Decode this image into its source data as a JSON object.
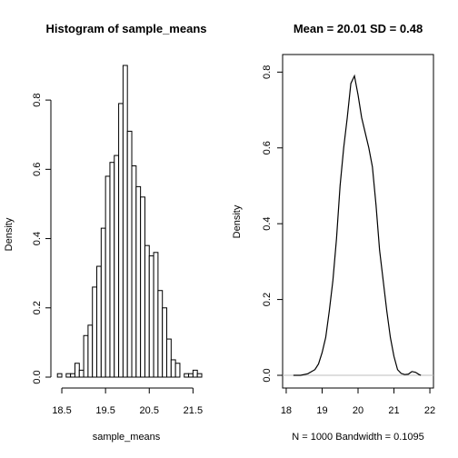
{
  "chart_data": [
    {
      "type": "bar",
      "title": "Histogram of sample_means",
      "xlabel": "sample_means",
      "ylabel": "Density",
      "xlim": [
        18.25,
        21.7
      ],
      "ylim": [
        0,
        0.9
      ],
      "xticks": [
        "18.5",
        "19.5",
        "20.5",
        "21.5"
      ],
      "xtick_values": [
        18.5,
        19.5,
        20.5,
        21.5
      ],
      "yticks": [
        "0.0",
        "0.2",
        "0.4",
        "0.6",
        "0.8"
      ],
      "ytick_values": [
        0.0,
        0.2,
        0.4,
        0.6,
        0.8
      ],
      "bin_width": 0.1,
      "bins_start": [
        18.4,
        18.5,
        18.6,
        18.7,
        18.8,
        18.9,
        19.0,
        19.1,
        19.2,
        19.3,
        19.4,
        19.5,
        19.6,
        19.7,
        19.8,
        19.9,
        20.0,
        20.1,
        20.2,
        20.3,
        20.4,
        20.5,
        20.6,
        20.7,
        20.8,
        20.9,
        21.0,
        21.1,
        21.2,
        21.3,
        21.4,
        21.5,
        21.6
      ],
      "values": [
        0.01,
        0.0,
        0.01,
        0.01,
        0.04,
        0.02,
        0.12,
        0.15,
        0.26,
        0.32,
        0.43,
        0.58,
        0.62,
        0.64,
        0.79,
        0.9,
        0.71,
        0.61,
        0.55,
        0.52,
        0.38,
        0.35,
        0.36,
        0.25,
        0.2,
        0.11,
        0.05,
        0.04,
        0.0,
        0.01,
        0.01,
        0.02,
        0.01
      ]
    },
    {
      "type": "line",
      "title": "Mean =  20.01 SD =  0.48",
      "xlabel": "N = 1000   Bandwidth = 0.1095",
      "ylabel": "Density",
      "xlim": [
        17.9,
        22.1
      ],
      "ylim": [
        0,
        0.82
      ],
      "xticks": [
        "18",
        "19",
        "20",
        "21",
        "22"
      ],
      "xtick_values": [
        18,
        19,
        20,
        21,
        22
      ],
      "yticks": [
        "0.0",
        "0.2",
        "0.4",
        "0.6",
        "0.8"
      ],
      "ytick_values": [
        0.0,
        0.2,
        0.4,
        0.6,
        0.8
      ],
      "x": [
        18.2,
        18.4,
        18.6,
        18.8,
        18.9,
        19.0,
        19.1,
        19.2,
        19.3,
        19.4,
        19.5,
        19.6,
        19.7,
        19.8,
        19.9,
        20.0,
        20.1,
        20.2,
        20.3,
        20.4,
        20.5,
        20.6,
        20.7,
        20.8,
        20.9,
        21.0,
        21.1,
        21.2,
        21.3,
        21.4,
        21.5,
        21.6,
        21.7,
        21.75
      ],
      "y": [
        0.0,
        0.0,
        0.004,
        0.015,
        0.03,
        0.06,
        0.1,
        0.17,
        0.25,
        0.36,
        0.5,
        0.6,
        0.68,
        0.77,
        0.79,
        0.74,
        0.68,
        0.64,
        0.6,
        0.55,
        0.45,
        0.33,
        0.25,
        0.17,
        0.1,
        0.05,
        0.015,
        0.005,
        0.002,
        0.003,
        0.01,
        0.008,
        0.002,
        0.0
      ]
    }
  ]
}
